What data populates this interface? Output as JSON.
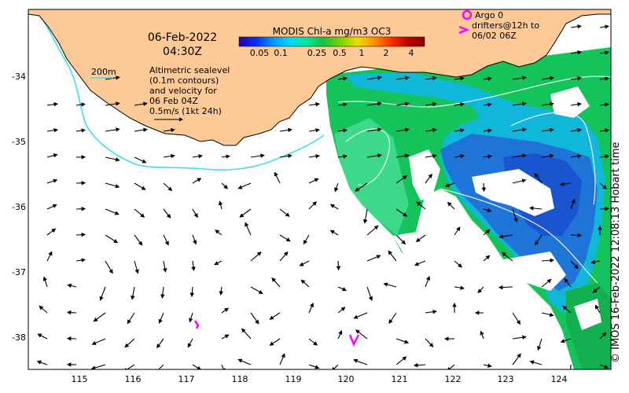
{
  "title": {
    "date": "06-Feb-2022",
    "time": "04:30Z"
  },
  "colorbar": {
    "title": "MODIS Chl-a mg/m3 OC3",
    "ticks": [
      "0.05",
      "0.1",
      "0.25",
      "0.5",
      "1",
      "2",
      "4"
    ],
    "colors": [
      "#2a00a8",
      "#0030ff",
      "#0096ff",
      "#00d8ff",
      "#00e6a0",
      "#18c040",
      "#7ad200",
      "#e8e000",
      "#ff9000",
      "#ff3000",
      "#c00000",
      "#800000"
    ]
  },
  "contour_legend": {
    "label": "200m",
    "color": "#40e0e8"
  },
  "altimetry_note": {
    "lines": [
      "Altimetric sealevel",
      "(0.1m contours)",
      "and velocity for",
      "06 Feb 04Z",
      "0.5m/s (1kt 24h)"
    ]
  },
  "argo_legend": {
    "label": "Argo 0",
    "color": "#ff00ff"
  },
  "drifter_legend": {
    "line1": "drifters@12h to",
    "line2": "06/02 06Z",
    "color": "#ff00ff"
  },
  "axes": {
    "x_ticks": [
      "115",
      "116",
      "117",
      "118",
      "119",
      "120",
      "121",
      "122",
      "123",
      "124"
    ],
    "y_ticks": [
      "-34",
      "-35",
      "-36",
      "-37",
      "-38"
    ],
    "xlim": [
      114.05,
      124.95
    ],
    "ylim": [
      -38.5,
      -32.95
    ]
  },
  "credit": "© IMOS 16-Feb-2022 12:08:13 Hobart time",
  "colors": {
    "land": "#fdc996",
    "coast": "#000000",
    "arrow": "#000000",
    "ssh_contour": "#e6f0e6"
  }
}
